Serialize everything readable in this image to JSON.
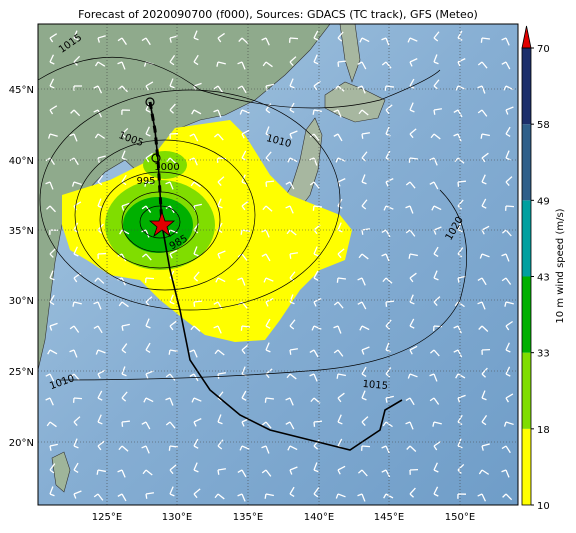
{
  "title": "Forecast of 2020090700 (f000), Sources: GDACS (TC track), GFS (Meteo)",
  "lat_labels": [
    "45°N",
    "40°N",
    "35°N",
    "30°N",
    "25°N",
    "20°N"
  ],
  "lon_labels": [
    "125°E",
    "130°E",
    "135°E",
    "140°E",
    "145°E",
    "150°E"
  ],
  "colorbar": {
    "label": "10 m wind speed (m/s)",
    "ticks": [
      10,
      18,
      33,
      43,
      49,
      58,
      70
    ],
    "colors": [
      "#ffff00",
      "#80dd00",
      "#00b000",
      "#00a0a0",
      "#2e5f8a",
      "#1c2f6b"
    ],
    "extend_color": "#e00000"
  },
  "isobar_labels": [
    1015,
    1005,
    1000,
    995,
    985,
    1010,
    1020,
    1010,
    1015
  ]
}
